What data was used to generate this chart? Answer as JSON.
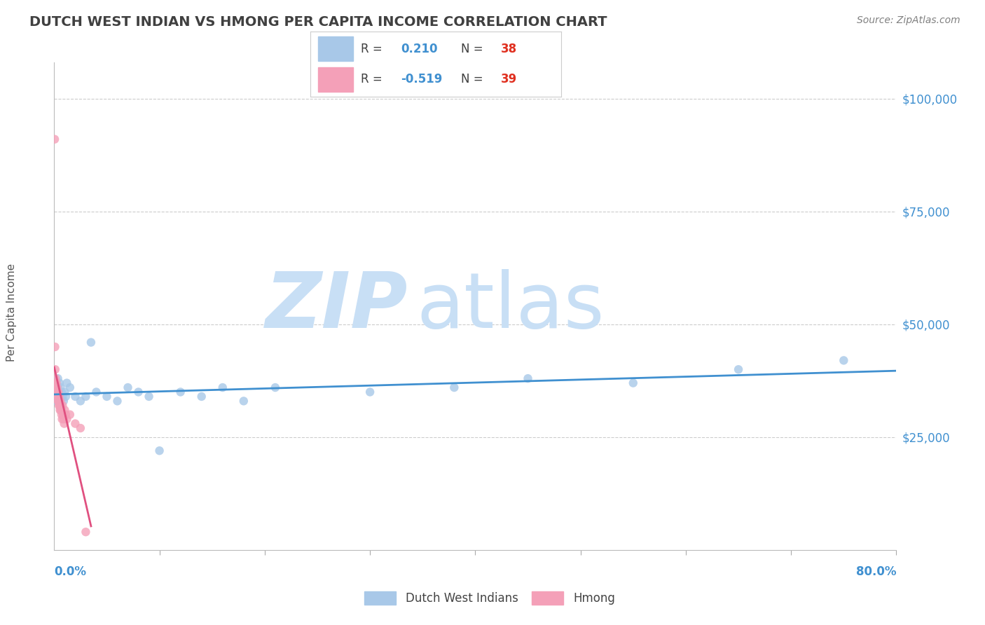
{
  "title": "DUTCH WEST INDIAN VS HMONG PER CAPITA INCOME CORRELATION CHART",
  "source": "Source: ZipAtlas.com",
  "ylabel": "Per Capita Income",
  "ytick_values": [
    0,
    25000,
    50000,
    75000,
    100000
  ],
  "ytick_labels": [
    "",
    "$25,000",
    "$50,000",
    "$75,000",
    "$100,000"
  ],
  "xmin": 0.0,
  "xmax": 80.0,
  "ymin": 0,
  "ymax": 108000,
  "dwi_R": 0.21,
  "dwi_N": 38,
  "hmong_R": -0.519,
  "hmong_N": 39,
  "dwi_color": "#A8C8E8",
  "hmong_color": "#F4A0B8",
  "dwi_line_color": "#4090D0",
  "hmong_line_color": "#E05080",
  "watermark_top": "ZIP",
  "watermark_bot": "atlas",
  "watermark_color": "#C8DFF5",
  "background_color": "#FFFFFF",
  "grid_color": "#CCCCCC",
  "title_color": "#404040",
  "source_color": "#808080",
  "axis_label_color": "#4090D0",
  "legend_r_color": "#4090D0",
  "legend_n_color": "#E03020",
  "legend_text_color": "#404040",
  "dwi_x": [
    0.15,
    0.2,
    0.25,
    0.3,
    0.35,
    0.4,
    0.5,
    0.55,
    0.6,
    0.7,
    0.8,
    0.9,
    1.0,
    1.1,
    1.2,
    1.5,
    2.0,
    2.5,
    3.0,
    3.5,
    4.0,
    5.0,
    6.0,
    7.0,
    8.0,
    9.0,
    10.0,
    12.0,
    14.0,
    16.0,
    18.0,
    21.0,
    30.0,
    38.0,
    45.0,
    55.0,
    65.0,
    75.0
  ],
  "dwi_y": [
    34000,
    33000,
    35000,
    36000,
    38000,
    35000,
    37000,
    34000,
    36000,
    35000,
    34000,
    33000,
    35000,
    34000,
    37000,
    36000,
    34000,
    33000,
    34000,
    46000,
    35000,
    34000,
    33000,
    36000,
    35000,
    34000,
    22000,
    35000,
    34000,
    36000,
    33000,
    36000,
    35000,
    36000,
    38000,
    37000,
    40000,
    42000
  ],
  "hmong_x": [
    0.05,
    0.08,
    0.1,
    0.12,
    0.15,
    0.18,
    0.2,
    0.22,
    0.25,
    0.28,
    0.3,
    0.32,
    0.35,
    0.38,
    0.4,
    0.42,
    0.45,
    0.48,
    0.5,
    0.52,
    0.55,
    0.58,
    0.6,
    0.62,
    0.65,
    0.68,
    0.7,
    0.75,
    0.8,
    0.85,
    0.9,
    0.95,
    1.0,
    1.1,
    1.2,
    1.5,
    2.0,
    2.5,
    3.0
  ],
  "hmong_y": [
    91000,
    45000,
    40000,
    38000,
    37000,
    36000,
    37000,
    35000,
    34000,
    36000,
    35000,
    34000,
    33000,
    35000,
    34000,
    33000,
    32000,
    34000,
    33000,
    32000,
    31000,
    33000,
    32000,
    31000,
    32000,
    31000,
    30000,
    29000,
    32000,
    30000,
    29000,
    28000,
    31000,
    30000,
    29000,
    30000,
    28000,
    27000,
    4000
  ]
}
